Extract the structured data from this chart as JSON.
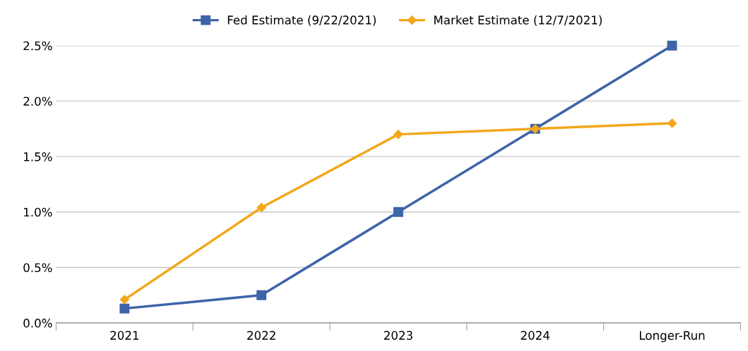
{
  "chart_data": {
    "type": "line",
    "categories": [
      "2021",
      "2022",
      "2023",
      "2024",
      "Longer-Run"
    ],
    "series": [
      {
        "name": "Fed Estimate (9/22/2021)",
        "color": "#3d64a8",
        "marker": "square",
        "values": [
          0.13,
          0.25,
          1.0,
          1.75,
          2.5
        ]
      },
      {
        "name": "Market Estimate (12/7/2021)",
        "color": "#f2a71b",
        "marker": "diamond",
        "values": [
          0.21,
          1.04,
          1.7,
          1.75,
          1.8
        ]
      }
    ],
    "ylim": [
      0,
      2.5
    ],
    "yticks": [
      {
        "value": 0,
        "label": "0.0%"
      },
      {
        "value": 0.5,
        "label": "0.5%"
      },
      {
        "value": 1.0,
        "label": "1.0%"
      },
      {
        "value": 1.5,
        "label": "1.5%"
      },
      {
        "value": 2.0,
        "label": "2.0%"
      },
      {
        "value": 2.5,
        "label": "2.5%"
      }
    ],
    "grid": "y",
    "legend": "top",
    "line_style": "solid"
  }
}
